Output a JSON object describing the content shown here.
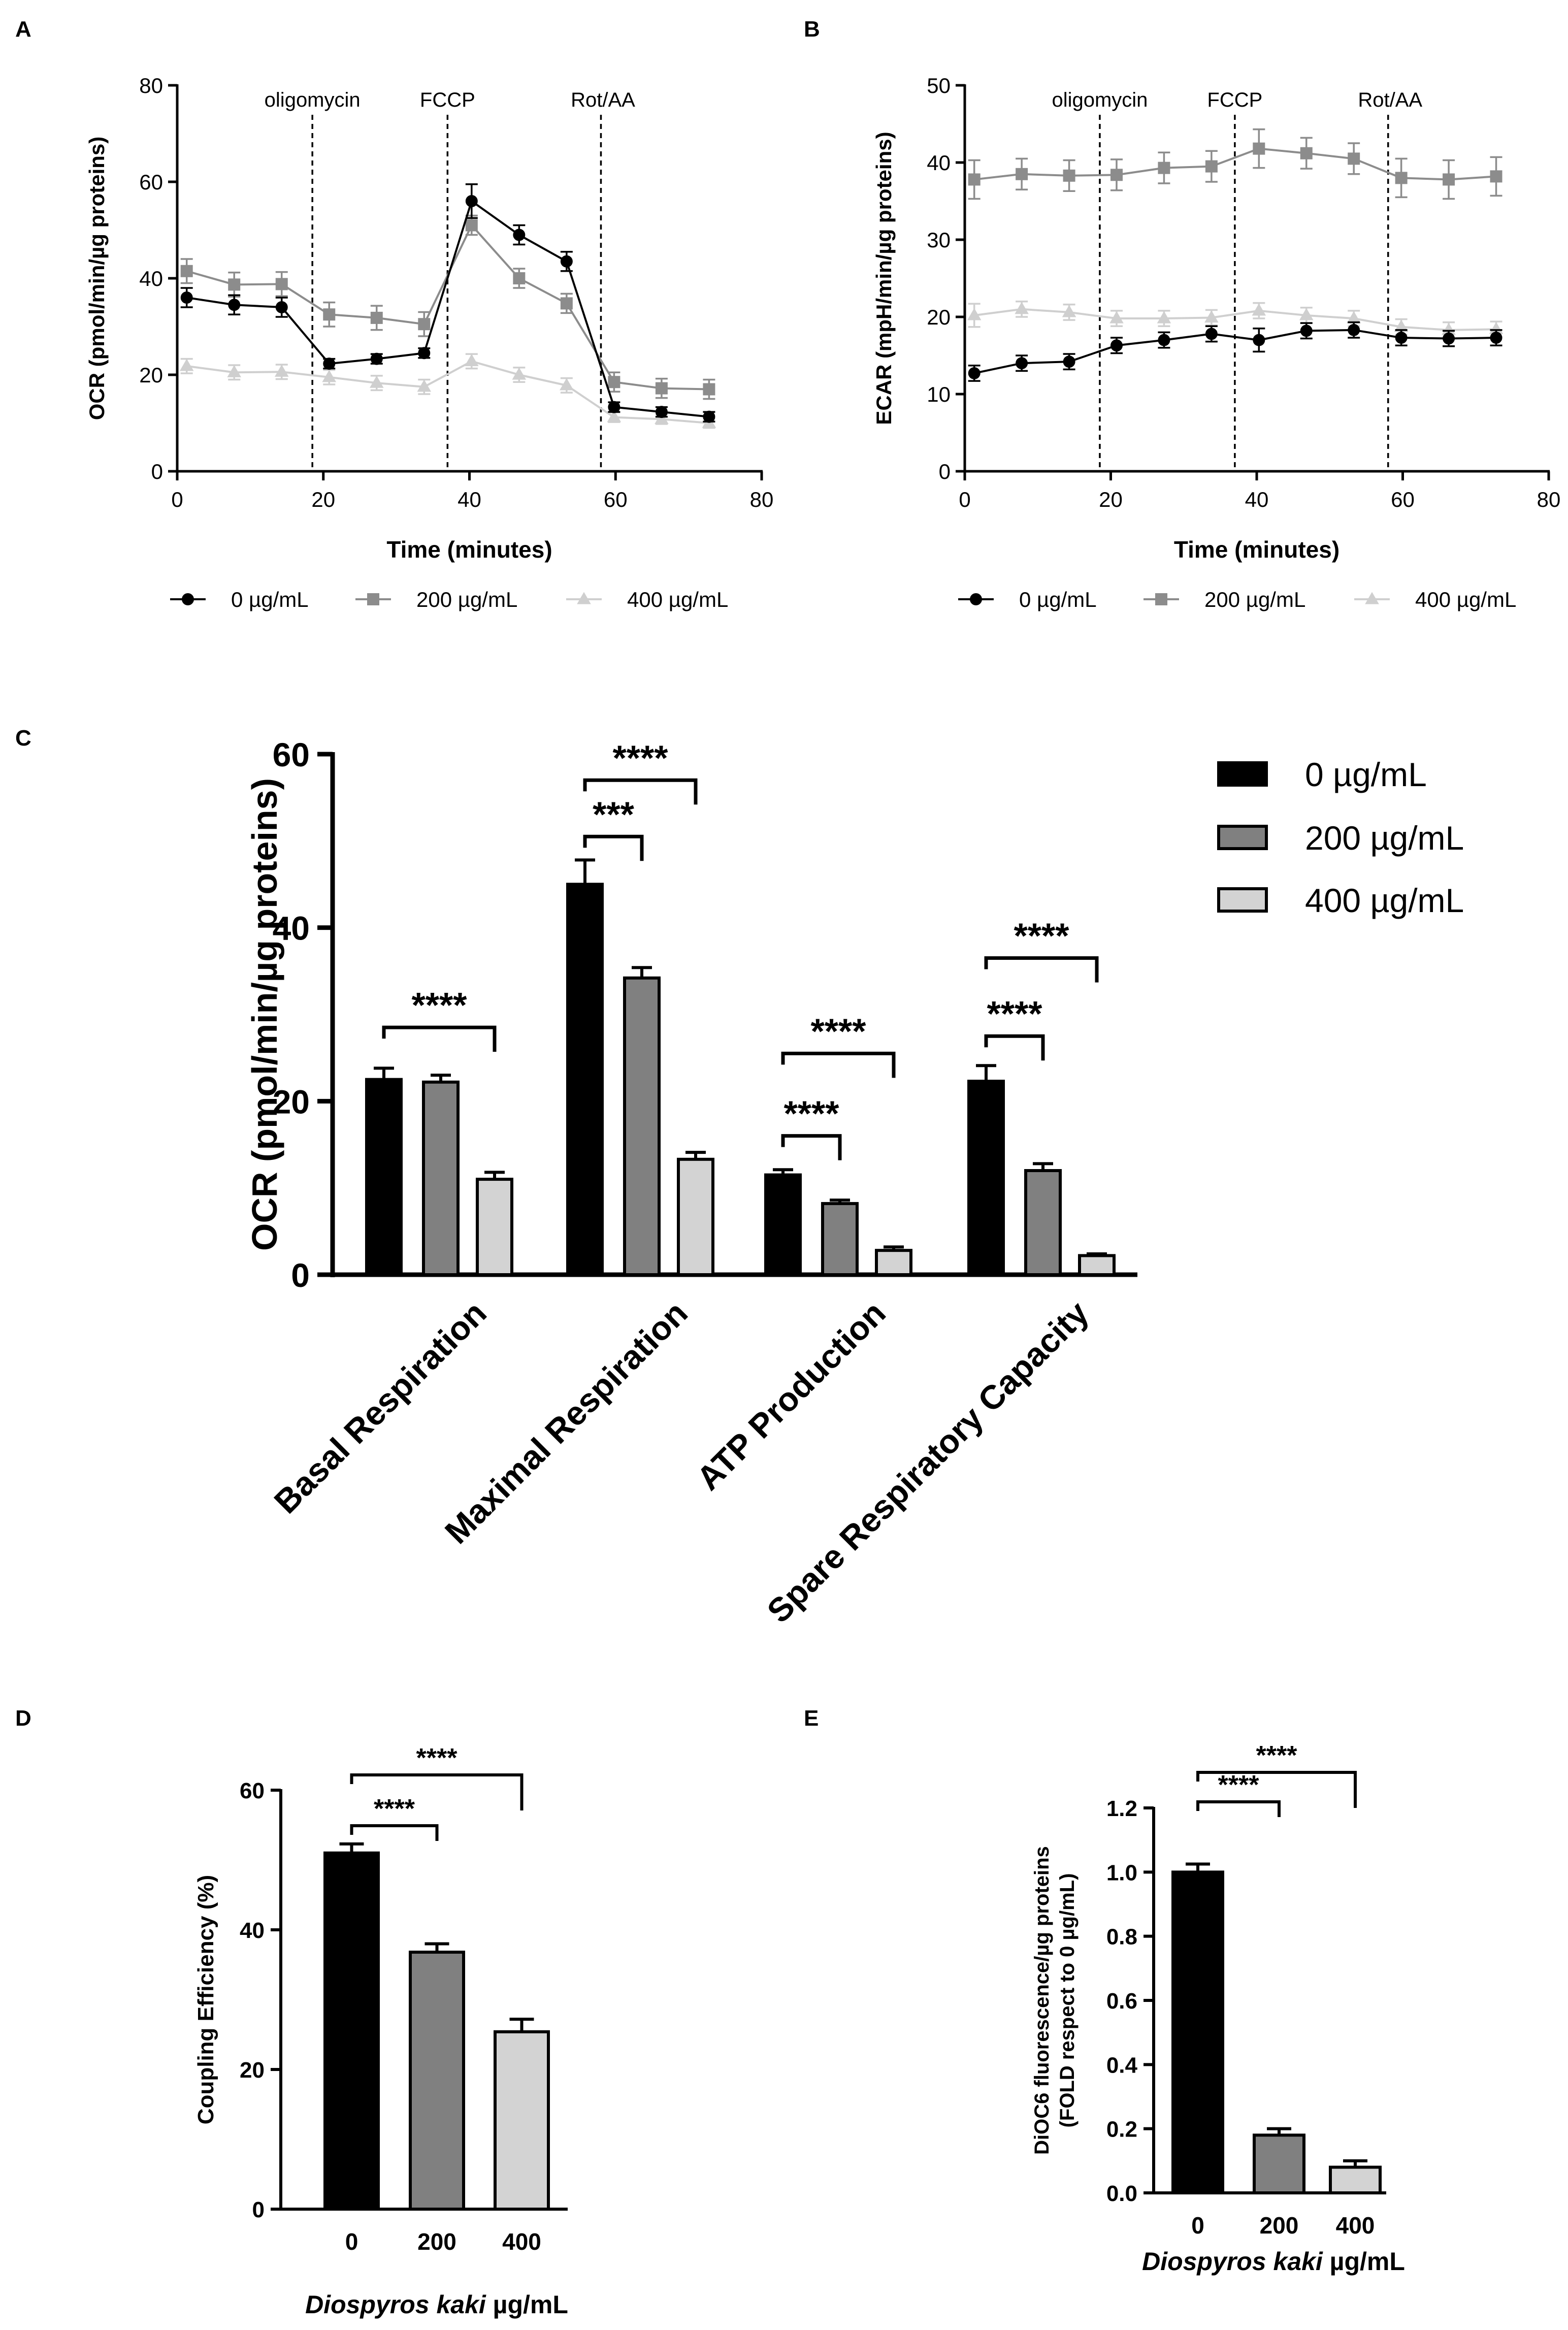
{
  "colors": {
    "c0": "#000000",
    "c200": "#808080",
    "c400": "#d3d3d3",
    "c200_marker": "#8c8c8c",
    "c400_marker": "#cfcfcf"
  },
  "chart_data": [
    {
      "id": "A",
      "panel_letter": "A",
      "type": "line",
      "xlabel": "Time (minutes)",
      "ylabel": "OCR (pmol/min/µg proteins)",
      "xlim": [
        0,
        80
      ],
      "ylim": [
        0,
        80
      ],
      "xticks": [
        "0",
        "20",
        "40",
        "60",
        "80"
      ],
      "yticks": [
        "0",
        "20",
        "40",
        "60",
        "80"
      ],
      "injections": [
        {
          "time": 18.5,
          "label": "oligomycin"
        },
        {
          "time": 37,
          "label": "FCCP"
        },
        {
          "time": 58,
          "label": "Rot/AA"
        }
      ],
      "x": [
        1.3,
        7.8,
        14.3,
        20.8,
        27.3,
        33.8,
        40.3,
        46.8,
        53.3,
        59.8,
        66.3,
        72.8
      ],
      "series": [
        {
          "name": "0 µg/mL",
          "marker": "circle",
          "values": [
            36,
            34.5,
            34,
            22.3,
            23.3,
            24.5,
            56,
            49,
            43.5,
            13.3,
            12.3,
            11.3
          ],
          "errors": [
            2,
            2,
            2,
            1,
            1,
            1,
            3.5,
            2,
            2,
            1,
            1,
            1
          ]
        },
        {
          "name": "200 µg/mL",
          "marker": "square",
          "values": [
            41.5,
            38.7,
            38.8,
            32.5,
            31.8,
            30.5,
            51,
            40,
            34.8,
            18.5,
            17.2,
            17
          ],
          "errors": [
            2.5,
            2.5,
            2.5,
            2.5,
            2.5,
            2.5,
            2,
            2,
            2,
            2,
            2,
            2
          ]
        },
        {
          "name": "400 µg/mL",
          "marker": "triangle",
          "values": [
            21.8,
            20.5,
            20.6,
            19.5,
            18.3,
            17.5,
            22.8,
            20,
            17.8,
            11.2,
            10.8,
            10
          ],
          "errors": [
            1.5,
            1.5,
            1.5,
            1.5,
            1.5,
            1.5,
            1.5,
            1.5,
            1.5,
            1,
            1,
            1
          ]
        }
      ],
      "legend": [
        "0 µg/mL",
        "200 µg/mL",
        "400 µg/mL"
      ]
    },
    {
      "id": "B",
      "panel_letter": "B",
      "type": "line",
      "xlabel": "Time (minutes)",
      "ylabel": "ECAR (mpH/min/µg proteins)",
      "xlim": [
        0,
        80
      ],
      "ylim": [
        0,
        50
      ],
      "xticks": [
        "0",
        "20",
        "40",
        "60",
        "80"
      ],
      "yticks": [
        "0",
        "10",
        "20",
        "30",
        "40",
        "50"
      ],
      "injections": [
        {
          "time": 18.5,
          "label": "oligomycin"
        },
        {
          "time": 37,
          "label": "FCCP"
        },
        {
          "time": 58,
          "label": "Rot/AA"
        }
      ],
      "x": [
        1.3,
        7.8,
        14.3,
        20.8,
        27.3,
        33.8,
        40.3,
        46.8,
        53.3,
        59.8,
        66.3,
        72.8
      ],
      "series": [
        {
          "name": "0 µg/mL",
          "marker": "circle",
          "values": [
            12.7,
            14,
            14.2,
            16.3,
            17,
            17.8,
            17,
            18.2,
            18.3,
            17.3,
            17.2,
            17.3
          ],
          "errors": [
            1,
            1,
            1,
            1,
            1,
            1,
            1.5,
            1,
            1,
            1,
            1,
            1
          ]
        },
        {
          "name": "200 µg/mL",
          "marker": "square",
          "values": [
            37.8,
            38.5,
            38.3,
            38.4,
            39.3,
            39.5,
            41.8,
            41.2,
            40.5,
            38,
            37.8,
            38.2
          ],
          "errors": [
            2.5,
            2,
            2,
            2,
            2,
            2,
            2.5,
            2,
            2,
            2.5,
            2.5,
            2.5
          ]
        },
        {
          "name": "400 µg/mL",
          "marker": "triangle",
          "values": [
            20.2,
            21,
            20.6,
            19.8,
            19.8,
            19.9,
            20.8,
            20.2,
            19.8,
            18.7,
            18.3,
            18.4
          ],
          "errors": [
            1.5,
            1,
            1,
            1,
            1,
            1,
            1,
            1,
            1,
            1,
            1,
            1
          ]
        }
      ],
      "legend": [
        "0 µg/mL",
        "200 µg/mL",
        "400 µg/mL"
      ]
    },
    {
      "id": "C",
      "panel_letter": "C",
      "type": "bar",
      "ylabel": "OCR (pmol/min/µg proteins)",
      "ylim": [
        0,
        60
      ],
      "yticks": [
        "0",
        "20",
        "40",
        "60"
      ],
      "categories": [
        "Basal Respiration",
        "Maximal Respiration",
        "ATP Production",
        "Spare Respiratory Capacity"
      ],
      "series": [
        {
          "name": "0 µg/mL",
          "values": [
            22.5,
            45,
            11.5,
            22.3
          ],
          "errors": [
            1.3,
            2.8,
            0.6,
            1.8
          ]
        },
        {
          "name": "200 µg/mL",
          "values": [
            22.2,
            34.2,
            8.2,
            12
          ],
          "errors": [
            0.8,
            1.2,
            0.4,
            0.8
          ]
        },
        {
          "name": "400 µg/mL",
          "values": [
            11,
            13.3,
            2.8,
            2.2
          ],
          "errors": [
            0.8,
            0.8,
            0.4,
            0.2
          ]
        }
      ],
      "significance": [
        {
          "category": 0,
          "from": 0,
          "to": 2,
          "level": 0,
          "stars": "****"
        },
        {
          "category": 1,
          "from": 0,
          "to": 1,
          "level": 0,
          "stars": "***"
        },
        {
          "category": 1,
          "from": 0,
          "to": 2,
          "level": 1,
          "stars": "****"
        },
        {
          "category": 2,
          "from": 0,
          "to": 1,
          "level": 0,
          "stars": "****"
        },
        {
          "category": 2,
          "from": 0,
          "to": 2,
          "level": 1,
          "stars": "****"
        },
        {
          "category": 3,
          "from": 0,
          "to": 1,
          "level": 0,
          "stars": "****"
        },
        {
          "category": 3,
          "from": 0,
          "to": 2,
          "level": 1,
          "stars": "****"
        }
      ],
      "legend": [
        "0 µg/mL",
        "200 µg/mL",
        "400 µg/mL"
      ]
    },
    {
      "id": "D",
      "panel_letter": "D",
      "type": "bar",
      "ylabel": "Coupling Efficiency (%)",
      "ylim": [
        0,
        60
      ],
      "yticks": [
        "0",
        "20",
        "40",
        "60"
      ],
      "categories": [
        "0",
        "200",
        "400"
      ],
      "values": [
        51,
        36.8,
        25.4
      ],
      "errors": [
        1.3,
        1.2,
        1.8
      ],
      "xlabel_italic": "Diospyros kaki",
      "xlabel_rest": " µg/mL",
      "significance": [
        {
          "from": 0,
          "to": 1,
          "level": 0,
          "stars": "****"
        },
        {
          "from": 0,
          "to": 2,
          "level": 1,
          "stars": "****"
        }
      ]
    },
    {
      "id": "E",
      "panel_letter": "E",
      "type": "bar",
      "ylabel_line1": "DiOC6 fluorescence/µg proteins",
      "ylabel_line2": "(FOLD respect to 0 µg/mL)",
      "ylim": [
        0,
        1.2
      ],
      "yticks": [
        "0.0",
        "0.2",
        "0.4",
        "0.6",
        "0.8",
        "1.0",
        "1.2"
      ],
      "categories": [
        "0",
        "200",
        "400"
      ],
      "values": [
        1.0,
        0.18,
        0.08
      ],
      "errors": [
        0.025,
        0.02,
        0.02
      ],
      "xlabel_italic": "Diospyros kaki",
      "xlabel_rest": " µg/mL",
      "significance": [
        {
          "from": 0,
          "to": 1,
          "level": 0,
          "stars": "****"
        },
        {
          "from": 0,
          "to": 2,
          "level": 1,
          "stars": "****"
        }
      ]
    }
  ]
}
